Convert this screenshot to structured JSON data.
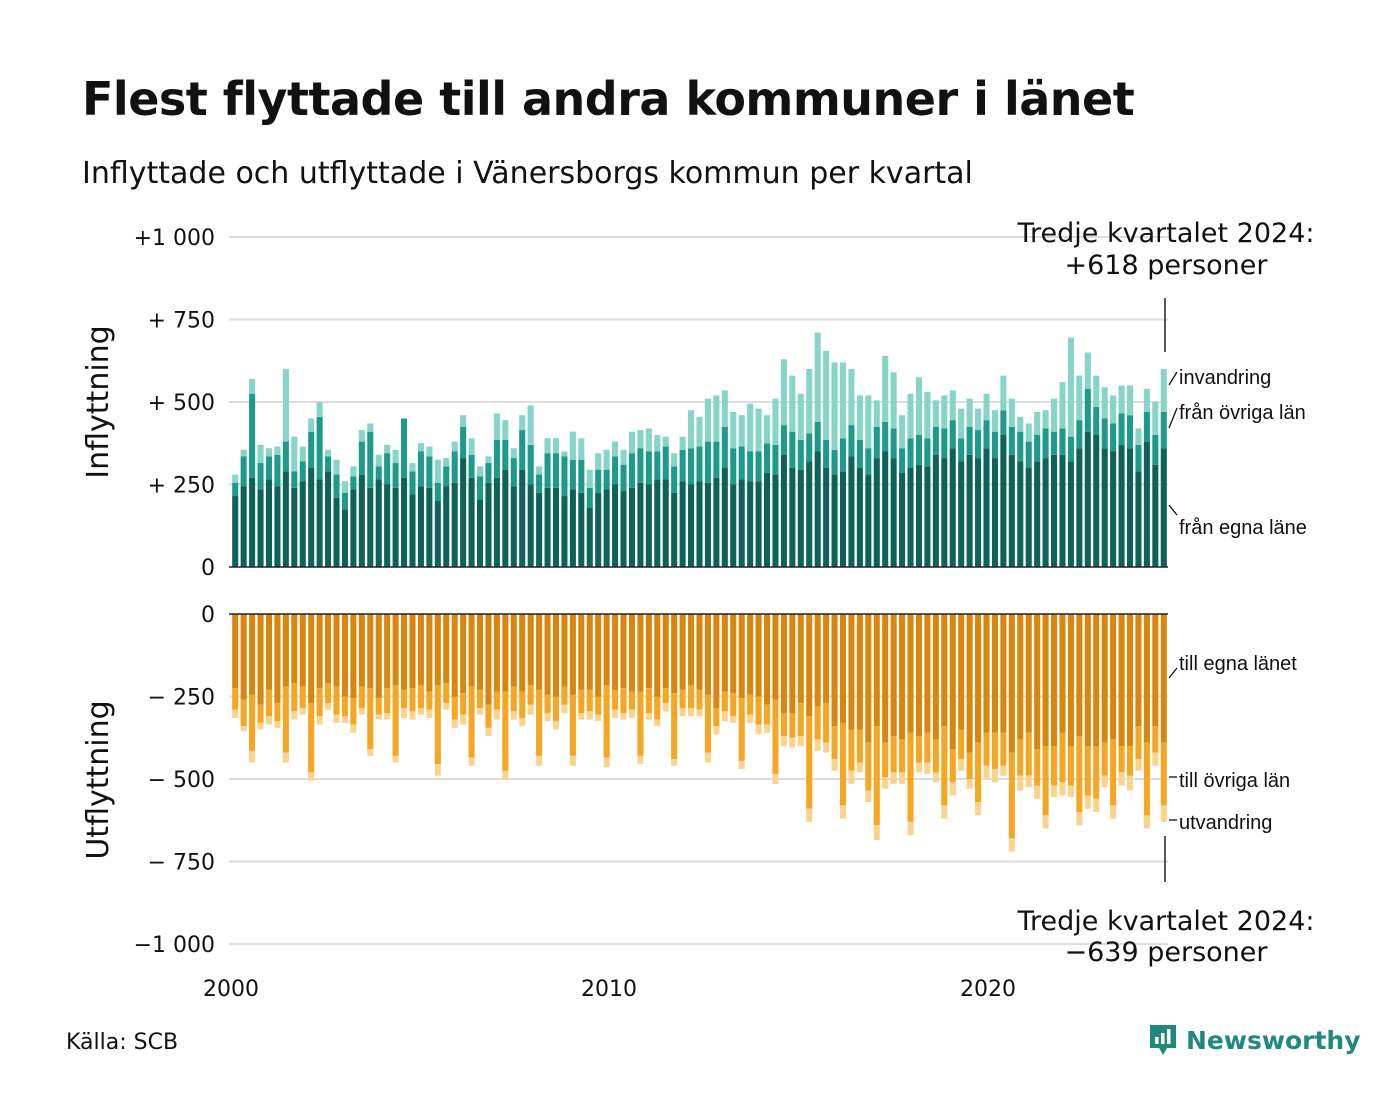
{
  "title": "Flest flyttade till andra kommuner i länet",
  "subtitle": "Inflyttade och utflyttade i Vänersborgs kommun per kvartal",
  "source": "Källa: SCB",
  "brand": "Newsworthy",
  "colors": {
    "in_own": "#0d6358",
    "in_other": "#1e9a8b",
    "in_immig": "#86d5c8",
    "out_own": "#d8860d",
    "out_other": "#f5a623",
    "out_emig": "#f9d48f",
    "grid": "#dddddd",
    "brand": "#1f8a7c"
  },
  "chart_data": {
    "type": "bar",
    "stacked": true,
    "x_start": 2000,
    "x_ticks": [
      "2000",
      "2010",
      "2020"
    ],
    "top_panel": {
      "ylabel": "Inflyttning",
      "yticks": [
        "+1 000",
        "+  750",
        "+  500",
        "+  250",
        "0"
      ],
      "ylim": [
        0,
        1000
      ],
      "series": [
        {
          "name": "från egna länet",
          "values": [
            215,
            245,
            270,
            235,
            265,
            245,
            290,
            240,
            260,
            300,
            265,
            290,
            210,
            175,
            235,
            280,
            240,
            265,
            250,
            240,
            270,
            220,
            245,
            240,
            200,
            245,
            255,
            330,
            270,
            205,
            255,
            270,
            295,
            245,
            295,
            250,
            225,
            240,
            240,
            215,
            235,
            225,
            180,
            225,
            235,
            250,
            230,
            240,
            255,
            250,
            265,
            265,
            225,
            260,
            250,
            260,
            255,
            270,
            300,
            250,
            265,
            260,
            260,
            285,
            280,
            340,
            300,
            295,
            320,
            350,
            300,
            280,
            290,
            335,
            300,
            280,
            330,
            350,
            330,
            285,
            300,
            310,
            305,
            340,
            330,
            360,
            320,
            340,
            330,
            360,
            330,
            400,
            340,
            320,
            300,
            320,
            330,
            340,
            340,
            320,
            360,
            410,
            400,
            360,
            350,
            370,
            360,
            290,
            380,
            310,
            360
          ]
        },
        {
          "name": "från övriga län",
          "values": [
            40,
            90,
            255,
            80,
            70,
            95,
            90,
            50,
            60,
            110,
            190,
            45,
            70,
            50,
            40,
            100,
            170,
            40,
            95,
            75,
            180,
            70,
            105,
            95,
            55,
            60,
            95,
            95,
            70,
            70,
            60,
            115,
            90,
            85,
            120,
            120,
            55,
            105,
            105,
            120,
            90,
            100,
            60,
            70,
            60,
            85,
            80,
            105,
            105,
            100,
            85,
            100,
            80,
            95,
            110,
            105,
            125,
            110,
            125,
            110,
            100,
            90,
            90,
            90,
            90,
            90,
            110,
            90,
            85,
            90,
            85,
            75,
            100,
            95,
            85,
            80,
            95,
            90,
            90,
            75,
            90,
            90,
            85,
            85,
            90,
            85,
            70,
            85,
            85,
            85,
            80,
            75,
            85,
            90,
            80,
            80,
            90,
            70,
            80,
            75,
            85,
            130,
            85,
            90,
            85,
            95,
            100,
            80,
            90,
            90,
            110
          ]
        },
        {
          "name": "invandring",
          "values": [
            25,
            20,
            45,
            55,
            25,
            25,
            220,
            105,
            45,
            40,
            45,
            20,
            45,
            35,
            30,
            35,
            25,
            35,
            25,
            40,
            0,
            25,
            25,
            30,
            70,
            25,
            30,
            35,
            50,
            30,
            20,
            80,
            60,
            30,
            45,
            120,
            25,
            45,
            45,
            15,
            85,
            65,
            55,
            50,
            60,
            45,
            45,
            65,
            55,
            70,
            50,
            30,
            40,
            40,
            115,
            90,
            130,
            140,
            110,
            110,
            95,
            145,
            130,
            85,
            140,
            200,
            170,
            140,
            195,
            270,
            270,
            265,
            230,
            170,
            135,
            160,
            80,
            200,
            170,
            100,
            135,
            175,
            140,
            80,
            100,
            90,
            90,
            85,
            65,
            80,
            65,
            105,
            85,
            45,
            55,
            70,
            55,
            100,
            140,
            300,
            135,
            110,
            95,
            95,
            85,
            85,
            90,
            50,
            70,
            100,
            130
          ]
        }
      ],
      "labels": [
        "invandring",
        "från övriga län",
        "från egna läne"
      ]
    },
    "bottom_panel": {
      "ylabel": "Utflyttning",
      "yticks": [
        "0",
        "−  250",
        "−  500",
        "−  750",
        "−1 000"
      ],
      "ylim": [
        -1000,
        0
      ],
      "series": [
        {
          "name": "till egna länet",
          "values": [
            225,
            260,
            245,
            275,
            230,
            270,
            220,
            210,
            220,
            270,
            225,
            210,
            220,
            250,
            255,
            220,
            225,
            255,
            225,
            215,
            230,
            225,
            215,
            235,
            215,
            210,
            250,
            240,
            220,
            230,
            275,
            235,
            235,
            220,
            235,
            215,
            230,
            245,
            250,
            220,
            245,
            230,
            230,
            250,
            215,
            230,
            225,
            235,
            235,
            225,
            250,
            225,
            240,
            230,
            215,
            230,
            245,
            285,
            235,
            240,
            255,
            245,
            250,
            275,
            260,
            300,
            300,
            270,
            310,
            280,
            270,
            340,
            330,
            350,
            350,
            390,
            340,
            390,
            370,
            380,
            360,
            370,
            360,
            380,
            340,
            410,
            350,
            420,
            390,
            360,
            360,
            360,
            420,
            380,
            360,
            410,
            400,
            400,
            360,
            400,
            370,
            400,
            400,
            390,
            380,
            400,
            400,
            340,
            390,
            340,
            390
          ]
        },
        {
          "name": "till övriga län",
          "values": [
            65,
            80,
            170,
            55,
            80,
            55,
            200,
            85,
            65,
            210,
            85,
            60,
            85,
            60,
            80,
            65,
            185,
            50,
            75,
            215,
            55,
            70,
            70,
            55,
            240,
            60,
            70,
            65,
            215,
            55,
            70,
            55,
            240,
            75,
            80,
            60,
            200,
            55,
            75,
            55,
            185,
            70,
            65,
            55,
            220,
            60,
            75,
            55,
            195,
            75,
            70,
            45,
            200,
            55,
            70,
            60,
            175,
            55,
            60,
            70,
            190,
            60,
            85,
            60,
            225,
            70,
            75,
            100,
            280,
            100,
            120,
            100,
            250,
            125,
            100,
            145,
            300,
            105,
            110,
            100,
            270,
            80,
            90,
            100,
            240,
            100,
            90,
            80,
            180,
            100,
            110,
            100,
            260,
            110,
            130,
            110,
            210,
            120,
            150,
            120,
            230,
            150,
            160,
            100,
            200,
            80,
            90,
            100,
            220,
            80,
            190
          ]
        },
        {
          "name": "utvandring",
          "values": [
            25,
            15,
            35,
            20,
            25,
            20,
            30,
            25,
            20,
            25,
            25,
            20,
            25,
            20,
            25,
            20,
            20,
            15,
            20,
            20,
            30,
            25,
            20,
            25,
            35,
            20,
            25,
            30,
            25,
            20,
            25,
            30,
            25,
            25,
            25,
            30,
            30,
            25,
            25,
            25,
            30,
            20,
            25,
            20,
            30,
            25,
            20,
            25,
            25,
            20,
            20,
            25,
            20,
            25,
            25,
            20,
            30,
            25,
            30,
            20,
            25,
            25,
            30,
            25,
            30,
            30,
            30,
            30,
            40,
            35,
            30,
            35,
            40,
            40,
            30,
            35,
            45,
            35,
            35,
            35,
            40,
            30,
            35,
            30,
            40,
            40,
            35,
            30,
            40,
            40,
            40,
            30,
            40,
            45,
            35,
            40,
            40,
            35,
            40,
            35,
            40,
            40,
            40,
            35,
            40,
            40,
            45,
            35,
            40,
            40,
            50
          ]
        }
      ],
      "labels": [
        "till egna länet",
        "till övriga län",
        "utvandring"
      ]
    },
    "callout_top": [
      "Tredje kvartalet 2024:",
      "+618 personer"
    ],
    "callout_bottom": [
      "Tredje kvartalet 2024:",
      "−639 personer"
    ]
  }
}
